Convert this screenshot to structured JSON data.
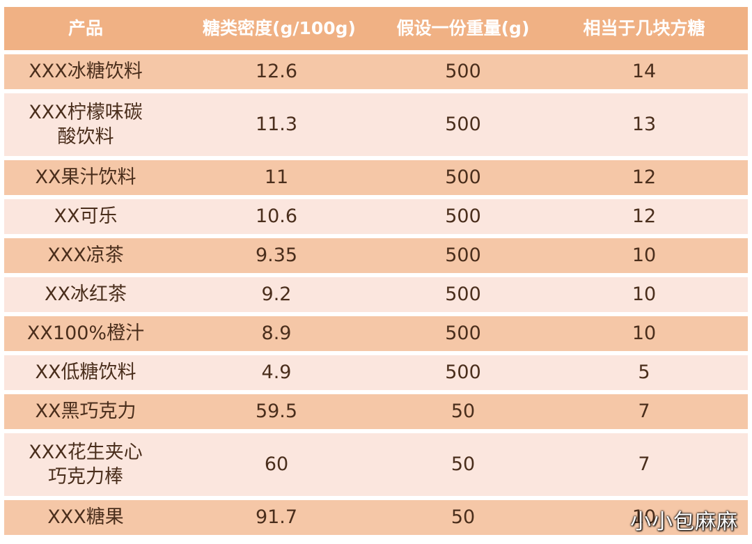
{
  "table": {
    "headers": [
      "产品",
      "糖类密度(g/100g)",
      "假设一份重量(g)",
      "相当于几块方糖"
    ],
    "rows": [
      {
        "product": [
          "XXX冰糖饮料"
        ],
        "density": "12.6",
        "weight": "500",
        "cubes": "14"
      },
      {
        "product": [
          "XXX柠檬味碳",
          "酸饮料"
        ],
        "density": "11.3",
        "weight": "500",
        "cubes": "13"
      },
      {
        "product": [
          "XX果汁饮料"
        ],
        "density": "11",
        "weight": "500",
        "cubes": "12"
      },
      {
        "product": [
          "XX可乐"
        ],
        "density": "10.6",
        "weight": "500",
        "cubes": "12"
      },
      {
        "product": [
          "XXX凉茶"
        ],
        "density": "9.35",
        "weight": "500",
        "cubes": "10"
      },
      {
        "product": [
          "XX冰红茶"
        ],
        "density": "9.2",
        "weight": "500",
        "cubes": "10"
      },
      {
        "product": [
          "XX100%橙汁"
        ],
        "density": "8.9",
        "weight": "500",
        "cubes": "10"
      },
      {
        "product": [
          "XX低糖饮料"
        ],
        "density": "4.9",
        "weight": "500",
        "cubes": "5"
      },
      {
        "product": [
          "XX黑巧克力"
        ],
        "density": "59.5",
        "weight": "50",
        "cubes": "7"
      },
      {
        "product": [
          "XXX花生夹心",
          "巧克力棒"
        ],
        "density": "60",
        "weight": "50",
        "cubes": "7"
      },
      {
        "product": [
          "XXX糖果"
        ],
        "density": "91.7",
        "weight": "50",
        "cubes": "10"
      }
    ]
  },
  "watermark": "小小包麻麻",
  "colors": {
    "header_bg": "#f0b184",
    "row_dark": "#f5c7a7",
    "row_light": "#fbe6de",
    "text": "#4a2e1c"
  }
}
